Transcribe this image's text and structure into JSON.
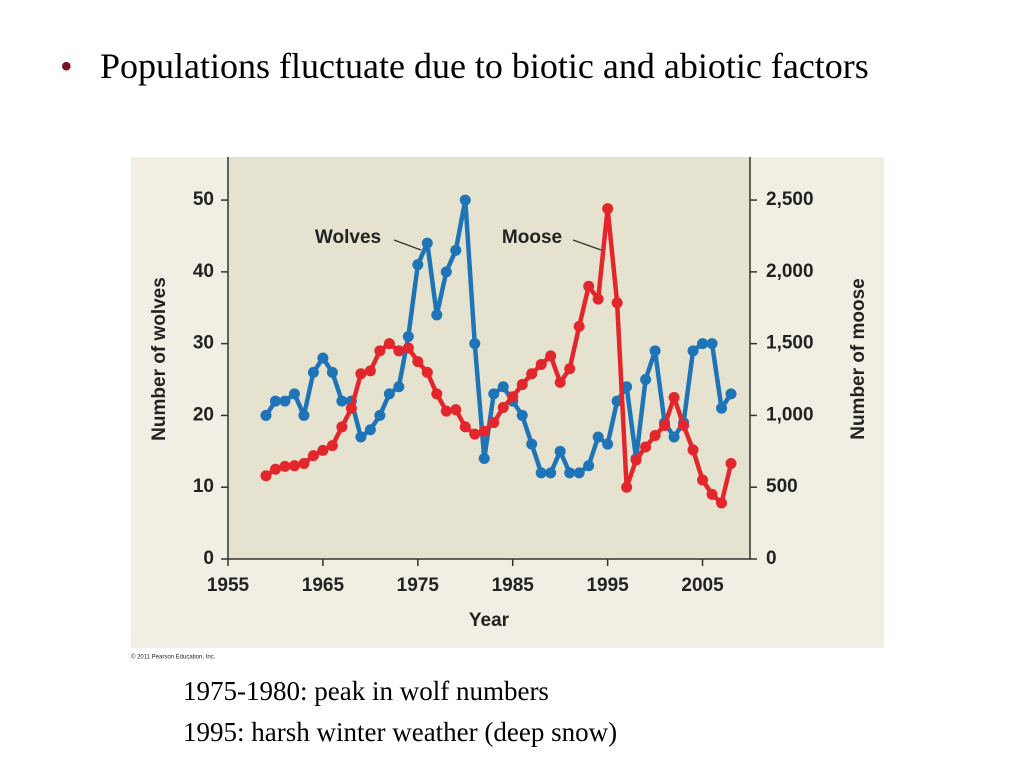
{
  "slide": {
    "title": "Populations fluctuate due to biotic and abiotic factors",
    "captions": [
      "1975-1980: peak in wolf numbers",
      "1995: harsh winter weather (deep snow)"
    ]
  },
  "chart_data": {
    "type": "line",
    "xlabel": "Year",
    "ylabel": "Number of wolves",
    "y2label": "Number of moose",
    "credit": "© 2011 Pearson Education, Inc.",
    "annotations": [
      "Wolves",
      "Moose"
    ],
    "x": [
      1959,
      1960,
      1961,
      1962,
      1963,
      1964,
      1965,
      1966,
      1967,
      1968,
      1969,
      1970,
      1971,
      1972,
      1973,
      1974,
      1975,
      1976,
      1977,
      1978,
      1979,
      1980,
      1981,
      1982,
      1983,
      1984,
      1985,
      1986,
      1987,
      1988,
      1989,
      1990,
      1991,
      1992,
      1993,
      1994,
      1995,
      1996,
      1997,
      1998,
      1999,
      2000,
      2001,
      2002,
      2003,
      2004,
      2005,
      2006,
      2007,
      2008
    ],
    "series": [
      {
        "name": "Wolves",
        "color": "#1f74b8",
        "axis": "y",
        "values": [
          20,
          22,
          22,
          23,
          20,
          26,
          28,
          26,
          22,
          22,
          17,
          18,
          20,
          23,
          24,
          31,
          41,
          44,
          34,
          40,
          43,
          50,
          30,
          14,
          23,
          24,
          22,
          20,
          16,
          12,
          12,
          15,
          12,
          12,
          13,
          17,
          16,
          22,
          24,
          14,
          25,
          29,
          19,
          17,
          19,
          29,
          30,
          30,
          21,
          23
        ]
      },
      {
        "name": "Moose",
        "color": "#e3262c",
        "axis": "y2",
        "values": [
          580,
          625,
          645,
          650,
          665,
          720,
          757,
          790,
          920,
          1050,
          1290,
          1310,
          1450,
          1500,
          1450,
          1470,
          1375,
          1300,
          1150,
          1030,
          1040,
          920,
          870,
          890,
          950,
          1055,
          1130,
          1215,
          1290,
          1355,
          1415,
          1230,
          1325,
          1620,
          1900,
          1810,
          2440,
          1785,
          500,
          690,
          780,
          860,
          930,
          1125,
          930,
          760,
          550,
          450,
          390,
          665
        ]
      }
    ],
    "xlim": [
      1955,
      2010
    ],
    "xticks": [
      1955,
      1965,
      1975,
      1985,
      1995,
      2005
    ],
    "ylim": [
      0,
      56
    ],
    "yticks": [
      0,
      10,
      20,
      30,
      40,
      50
    ],
    "y2lim": [
      0,
      2800
    ],
    "y2ticks": [
      0,
      500,
      {
        "value": 1000,
        "label": "1,000"
      },
      {
        "value": 1500,
        "label": "1,500"
      },
      {
        "value": 2000,
        "label": "2,000"
      },
      {
        "value": 2500,
        "label": "2,500"
      }
    ],
    "plot_color": "#e5e3cf",
    "panel_color": "#f1eee4"
  }
}
